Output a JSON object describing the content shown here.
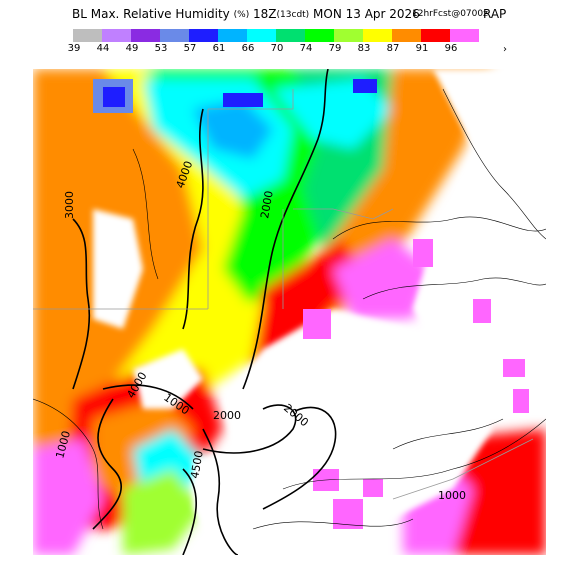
{
  "header": {
    "title": "BL Max. Relative Humidity",
    "unit": "(%)",
    "valid_hour": "18Z",
    "valid_local": "(13cdt)",
    "valid_date": "MON 13 Apr 2026",
    "forecast_info": "12hrFcst@0700z",
    "model": "RAP"
  },
  "legend": {
    "labels": [
      "39",
      "44",
      "49",
      "53",
      "57",
      "61",
      "66",
      "70",
      "74",
      "79",
      "83",
      "87",
      "91",
      "96"
    ],
    "colors": [
      "#bebebe",
      "#c080ff",
      "#8a2be2",
      "#6a8ae8",
      "#1e1eff",
      "#00b4ff",
      "#00ffff",
      "#00e070",
      "#00ff00",
      "#a0ff30",
      "#ffff00",
      "#ff8c00",
      "#ff0000",
      "#ff66ff"
    ],
    "more_glyph": "›"
  },
  "map": {
    "contour_labels": [
      "4000",
      "2000",
      "3000",
      "2000",
      "2000",
      "1000",
      "4000",
      "1000",
      "4500",
      "1000"
    ]
  }
}
